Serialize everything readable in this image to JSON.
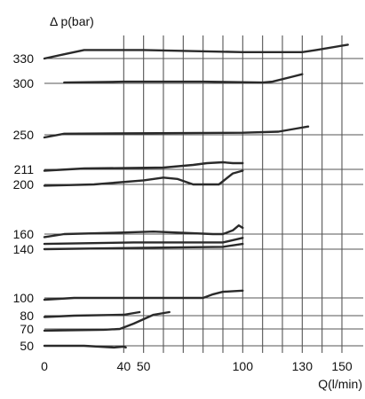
{
  "chart_data": {
    "type": "line",
    "ylabel": "Δ p(bar)",
    "xlabel": "Q(l/min)",
    "x_ticks": [
      0,
      40,
      50,
      100,
      130,
      150
    ],
    "y_ticks": [
      330,
      300,
      250,
      211,
      200,
      160,
      140,
      100,
      80,
      70,
      50
    ],
    "grid": true,
    "series": [
      {
        "x": [
          0,
          10,
          20,
          50,
          100,
          130,
          137,
          153
        ],
        "y": [
          330,
          334,
          338,
          338,
          336,
          336,
          338,
          343
        ]
      },
      {
        "x": [
          10,
          40,
          80,
          110,
          115,
          125,
          130
        ],
        "y": [
          301,
          302,
          302,
          301,
          302,
          308,
          311
        ]
      },
      {
        "x": [
          0,
          10,
          100,
          118,
          127,
          133
        ],
        "y": [
          247,
          251,
          252,
          253,
          256,
          258
        ]
      },
      {
        "x": [
          0,
          20,
          60,
          65,
          75,
          82,
          90,
          95,
          100
        ],
        "y": [
          210,
          212,
          213,
          214,
          216,
          218,
          219,
          218,
          218
        ]
      },
      {
        "x": [
          0,
          25,
          50,
          60,
          67,
          75,
          88,
          95,
          100
        ],
        "y": [
          199,
          200,
          203,
          205,
          204,
          200,
          200,
          208,
          210
        ]
      },
      {
        "x": [
          0,
          10,
          35,
          55,
          85,
          90,
          95,
          98,
          100
        ],
        "y": [
          156,
          160,
          161,
          162,
          160,
          160,
          163,
          167,
          165
        ]
      },
      {
        "x": [
          0,
          45,
          90,
          100
        ],
        "y": [
          147,
          149,
          149,
          155
        ]
      },
      {
        "x": [
          0,
          55,
          90,
          100
        ],
        "y": [
          140,
          142,
          143,
          147
        ]
      },
      {
        "x": [
          0,
          15,
          80,
          85,
          90,
          100
        ],
        "y": [
          98,
          100,
          100,
          103,
          105,
          106
        ]
      },
      {
        "x": [
          0,
          15,
          40,
          48
        ],
        "y": [
          79,
          80,
          81,
          84
        ]
      },
      {
        "x": [
          0,
          30,
          38,
          45,
          55,
          63
        ],
        "y": [
          68,
          69,
          70,
          74,
          81,
          84
        ]
      },
      {
        "x": [
          0,
          20,
          35,
          40,
          41
        ],
        "y": [
          50,
          50,
          48,
          49,
          48
        ]
      }
    ]
  }
}
